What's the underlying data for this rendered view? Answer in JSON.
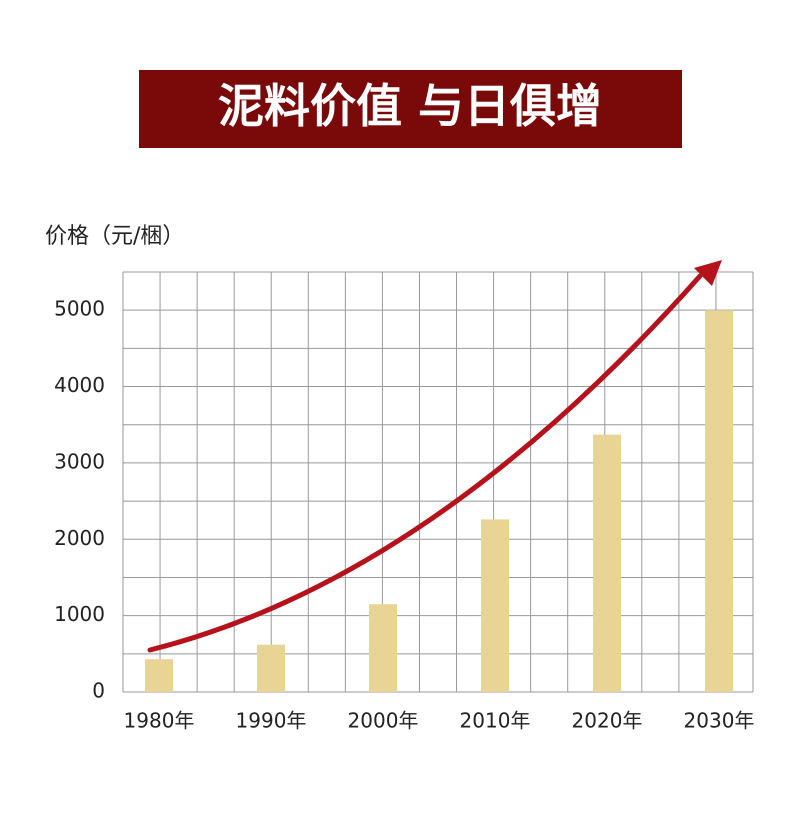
{
  "chart_data": {
    "type": "bar",
    "title": "泥料价值 与日俱增",
    "y_label": "价格（元/梱）",
    "categories": [
      "1980年",
      "1990年",
      "2000年",
      "2010年",
      "2020年",
      "2030年"
    ],
    "values": [
      430,
      620,
      1150,
      2260,
      3370,
      5000
    ],
    "color": "#e8d596",
    "ylim": [
      0,
      5500
    ],
    "yticks": [
      0,
      1000,
      2000,
      3000,
      4000,
      5000
    ],
    "minor_yticks": [
      500,
      1500,
      2500,
      3500,
      4500,
      5500
    ],
    "grid": true
  }
}
